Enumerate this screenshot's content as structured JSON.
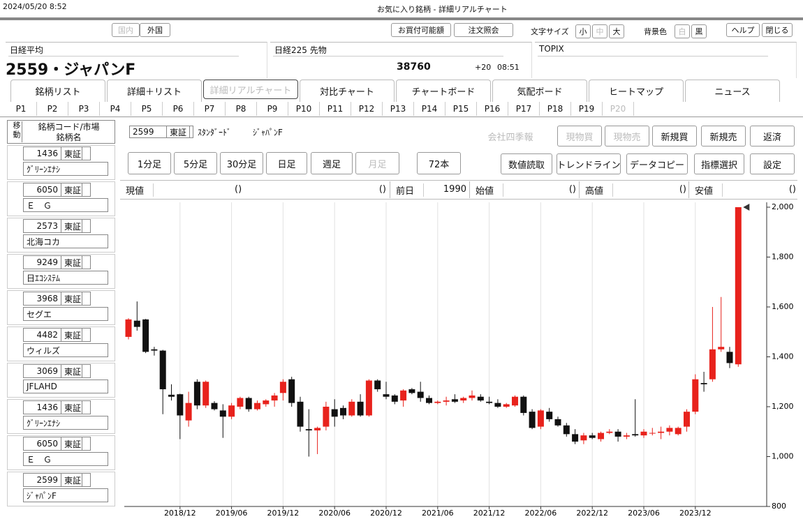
{
  "header": {
    "timestamp": "2024/05/20 8:52",
    "title": "お気に入り銘柄 - 詳細リアルチャート"
  },
  "toolbar": {
    "market": [
      "国内",
      "外国"
    ],
    "orders": [
      "お買付可能額",
      "注文照会"
    ],
    "font_size_label": "文字サイズ",
    "font_sizes": [
      "小",
      "中",
      "大"
    ],
    "background_label": "背景色",
    "backgrounds": [
      "白",
      "黒"
    ],
    "help": "ヘルプ",
    "close": "閉じる"
  },
  "panels": [
    {
      "title": "日経平均",
      "name": "2559・ジャパンF"
    },
    {
      "title": "日経225 先物",
      "price": 38760,
      "change": "+20",
      "time": "08:51"
    },
    {
      "title": "TOPIX"
    }
  ],
  "tabs": [
    "銘柄リスト",
    "詳細＋リスト",
    "詳細リアルチャート",
    "対比チャート",
    "チャートボード",
    "気配ボード",
    "ヒートマップ",
    "ニュース"
  ],
  "pages": [
    "P1",
    "P2",
    "P3",
    "P4",
    "P5",
    "P6",
    "P7",
    "P8",
    "P9",
    "P10",
    "P11",
    "P12",
    "P13",
    "P14",
    "P15",
    "P16",
    "P17",
    "P18",
    "P19",
    "P20"
  ],
  "sidebar": {
    "move_label": "移動",
    "code_market_label": "銘柄コード/市場",
    "name_label": "銘柄名",
    "items": [
      {
        "code": 1436,
        "market": "東証",
        "name": "ｸﾞﾘｰﾝｴﾅｼ"
      },
      {
        "code": 6050,
        "market": "東証",
        "name": "Ｅ　Ｇ"
      },
      {
        "code": 2573,
        "market": "東証",
        "name": "北海コカ"
      },
      {
        "code": 9249,
        "market": "東証",
        "name": "日ｴｺｼｽﾃﾑ"
      },
      {
        "code": 3968,
        "market": "東証",
        "name": "セグエ"
      },
      {
        "code": 4482,
        "market": "東証",
        "name": "ウィルズ"
      },
      {
        "code": 3069,
        "market": "東証",
        "name": "JFLAHD"
      },
      {
        "code": 1436,
        "market": "東証",
        "name": "ｸﾞﾘｰﾝｴﾅｼ"
      },
      {
        "code": 6050,
        "market": "東証",
        "name": "Ｅ　Ｇ"
      },
      {
        "code": 2599,
        "market": "東証",
        "name": "ｼﾞｬﾊﾟﾝF"
      }
    ]
  },
  "stock": {
    "code": 2599,
    "market": "東証",
    "segment": "ｽﾀﾝﾀﾞｰﾄﾞ",
    "name": "ｼﾞｬﾊﾟﾝF",
    "actions": [
      "会社四季報",
      "現物買",
      "現物売",
      "新規買",
      "新規売",
      "返済"
    ]
  },
  "periods": [
    "1分足",
    "5分足",
    "30分足",
    "日足",
    "週足",
    "月足"
  ],
  "bar_count": "72本",
  "tools": [
    "数値読取",
    "トレンドライン",
    "データコピー",
    "指標選択",
    "設定"
  ],
  "quotes": [
    {
      "label": "現値",
      "value": "()",
      "change": "()"
    },
    {
      "label": "前日",
      "value": 1990
    },
    {
      "label": "始値",
      "value": "()"
    },
    {
      "label": "高値",
      "value": "()"
    },
    {
      "label": "安値",
      "value": "()"
    }
  ],
  "chart_data": {
    "type": "candlestick",
    "categories": [
      null,
      null,
      null,
      null,
      null,
      null,
      "2018/12",
      null,
      null,
      null,
      null,
      null,
      "2019/06",
      null,
      null,
      null,
      null,
      null,
      "2019/12",
      null,
      null,
      null,
      null,
      null,
      "2020/06",
      null,
      null,
      null,
      null,
      null,
      "2020/12",
      null,
      null,
      null,
      null,
      null,
      "2021/06",
      null,
      null,
      null,
      null,
      null,
      "2021/12",
      null,
      null,
      null,
      null,
      null,
      "2022/06",
      null,
      null,
      null,
      null,
      null,
      "2022/12",
      null,
      null,
      null,
      null,
      null,
      "2023/06",
      null,
      null,
      null,
      null,
      null,
      "2023/12",
      null,
      null,
      null,
      null,
      null
    ],
    "open": [
      1480,
      1545,
      1550,
      1430,
      1425,
      1248,
      1250,
      1145,
      1300,
      1205,
      1215,
      1185,
      1160,
      1200,
      1235,
      1190,
      1210,
      1225,
      1255,
      1310,
      1220,
      1110,
      1105,
      1120,
      1190,
      1195,
      1165,
      1220,
      1165,
      1305,
      1250,
      1245,
      1225,
      1270,
      1260,
      1235,
      1215,
      1220,
      1230,
      1225,
      1235,
      1240,
      1220,
      1215,
      1200,
      1205,
      1240,
      1180,
      1120,
      1180,
      1150,
      1125,
      1090,
      1065,
      1085,
      1070,
      1095,
      1100,
      1080,
      1090,
      1085,
      1095,
      1095,
      1100,
      1090,
      1120,
      1180,
      1295,
      1310,
      1430,
      1420,
      1370
    ],
    "high": [
      1555,
      1622,
      1552,
      1440,
      1428,
      1290,
      1252,
      1260,
      1310,
      1305,
      1222,
      1210,
      1215,
      1240,
      1240,
      1225,
      1230,
      1255,
      1310,
      1320,
      1240,
      1190,
      1120,
      1220,
      1230,
      1205,
      1230,
      1250,
      1310,
      1310,
      1300,
      1250,
      1270,
      1275,
      1300,
      1245,
      1225,
      1240,
      1250,
      1240,
      1265,
      1250,
      1240,
      1230,
      1215,
      1245,
      1245,
      1190,
      1190,
      1195,
      1160,
      1135,
      1110,
      1095,
      1095,
      1100,
      1110,
      1110,
      1095,
      1230,
      1110,
      1115,
      1120,
      1125,
      1120,
      1190,
      1330,
      1340,
      1600,
      1640,
      1440,
      2000
    ],
    "low": [
      1470,
      1505,
      1415,
      1405,
      1170,
      1225,
      1070,
      1120,
      1190,
      1195,
      1185,
      1075,
      1150,
      1190,
      1180,
      1185,
      1200,
      1200,
      1225,
      1200,
      1100,
      1000,
      1010,
      1105,
      1120,
      1150,
      1160,
      1160,
      1160,
      1260,
      1230,
      1210,
      1200,
      1250,
      1220,
      1210,
      1210,
      1205,
      1215,
      1215,
      1225,
      1220,
      1210,
      1195,
      1195,
      1200,
      1165,
      1110,
      1110,
      1140,
      1120,
      1080,
      1050,
      1050,
      1070,
      1060,
      1090,
      1060,
      1070,
      1080,
      1075,
      1085,
      1070,
      1085,
      1085,
      1100,
      1170,
      1260,
      1300,
      1420,
      1355,
      1360
    ],
    "close": [
      1550,
      1520,
      1420,
      1425,
      1270,
      1240,
      1165,
      1215,
      1205,
      1300,
      1190,
      1160,
      1205,
      1235,
      1190,
      1215,
      1225,
      1245,
      1300,
      1215,
      1120,
      1105,
      1115,
      1200,
      1160,
      1165,
      1220,
      1165,
      1305,
      1270,
      1240,
      1220,
      1265,
      1255,
      1235,
      1215,
      1220,
      1225,
      1220,
      1235,
      1245,
      1225,
      1215,
      1200,
      1210,
      1240,
      1175,
      1115,
      1185,
      1150,
      1125,
      1090,
      1060,
      1085,
      1075,
      1095,
      1100,
      1080,
      1085,
      1085,
      1100,
      1095,
      1100,
      1115,
      1115,
      1180,
      1310,
      1290,
      1430,
      1440,
      1375,
      2000
    ],
    "up_color": "#e8221c",
    "down_color": "#111111",
    "ylim": [
      800,
      2000
    ],
    "yticks": [
      800,
      {
        "value": 1000,
        "label": "1,000"
      },
      {
        "value": 1200,
        "label": "1,200"
      },
      {
        "value": 1400,
        "label": "1,400"
      },
      {
        "value": 1600,
        "label": "1,600"
      },
      {
        "value": 1800,
        "label": "1,800"
      },
      {
        "value": 2000,
        "label": "2,000"
      }
    ],
    "grid": "x"
  }
}
